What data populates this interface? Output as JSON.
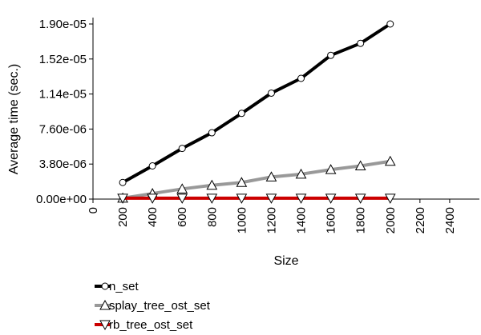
{
  "chart_data": {
    "type": "line",
    "title": "",
    "xlabel": "Size",
    "ylabel": "Average time (sec.)",
    "xlim": [
      0,
      2600
    ],
    "ylim": [
      0,
      1.9e-05
    ],
    "x_ticks": [
      0,
      200,
      400,
      600,
      800,
      1000,
      1200,
      1400,
      1600,
      1800,
      2000,
      2200,
      2400
    ],
    "x_tick_labels": [
      "0",
      "200",
      "400",
      "600",
      "800",
      "1000",
      "1200",
      "1400",
      "1600",
      "1800",
      "2000",
      "2200",
      "2400"
    ],
    "y_ticks": [
      0,
      3.8e-06,
      7.6e-06,
      1.14e-05,
      1.52e-05,
      1.9e-05
    ],
    "y_tick_labels": [
      "0.00e+00",
      "3.80e-06",
      "7.60e-06",
      "1.14e-05",
      "1.52e-05",
      "1.90e-05"
    ],
    "x": [
      200,
      400,
      600,
      800,
      1000,
      1200,
      1400,
      1600,
      1800,
      2000
    ],
    "series": [
      {
        "name": "n_set",
        "color": "#000000",
        "marker": "circle",
        "values": [
          1.8e-06,
          3.6e-06,
          5.5e-06,
          7.2e-06,
          9.3e-06,
          1.15e-05,
          1.31e-05,
          1.56e-05,
          1.69e-05,
          1.9e-05
        ]
      },
      {
        "name": "splay_tree_ost_set",
        "color": "#999999",
        "marker": "triangle-up",
        "values": [
          1e-07,
          6e-07,
          1.1e-06,
          1.5e-06,
          1.8e-06,
          2.4e-06,
          2.7e-06,
          3.2e-06,
          3.6e-06,
          4.1e-06
        ]
      },
      {
        "name": "rb_tree_ost_set",
        "color": "#cc0000",
        "marker": "triangle-down",
        "values": [
          1e-07,
          1e-07,
          1e-07,
          1e-07,
          1e-07,
          1e-07,
          1e-07,
          1e-07,
          1e-07,
          1e-07
        ]
      }
    ],
    "grid": false,
    "legend_position": "bottom-left"
  }
}
